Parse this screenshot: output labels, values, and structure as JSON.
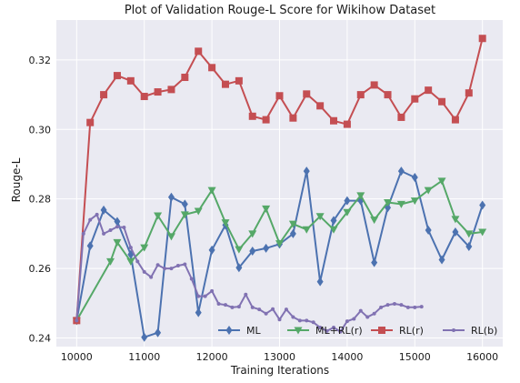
{
  "chart_data": {
    "type": "line",
    "title": "Plot of Validation Rouge-L Score for Wikihow Dataset",
    "xlabel": "Training Iterations",
    "ylabel": "Rouge-L",
    "xlim": [
      9700,
      16300
    ],
    "ylim": [
      0.2375,
      0.3315
    ],
    "xticks": [
      "10000",
      "11000",
      "12000",
      "13000",
      "14000",
      "15000",
      "16000"
    ],
    "yticks": [
      "0.24",
      "0.26",
      "0.28",
      "0.30",
      "0.32"
    ],
    "grid": true,
    "background": "#EAEAF2",
    "legend_position": "bottom-center",
    "series": [
      {
        "name": "ML",
        "color": "#4C72B0",
        "marker": "diamond",
        "x": [
          10000,
          10200,
          10400,
          10600,
          10800,
          11000,
          11200,
          11400,
          11600,
          11800,
          12000,
          12200,
          12400,
          12600,
          12800,
          13000,
          13200,
          13400,
          13600,
          13800,
          14000,
          14200,
          14400,
          14600,
          14800,
          15000,
          15200,
          15400,
          15600,
          15800,
          16000
        ],
        "y": [
          0.245,
          0.2665,
          0.2768,
          0.2735,
          0.264,
          0.2402,
          0.2415,
          0.2805,
          0.2785,
          0.2473,
          0.2653,
          0.2725,
          0.2602,
          0.265,
          0.2658,
          0.267,
          0.27,
          0.288,
          0.2562,
          0.2738,
          0.2795,
          0.2795,
          0.2617,
          0.2775,
          0.288,
          0.2862,
          0.271,
          0.2625,
          0.2705,
          0.2663,
          0.2782
        ]
      },
      {
        "name": "ML+RL(r)",
        "color": "#55A868",
        "marker": "triangle-down",
        "x": [
          10000,
          10500,
          10600,
          10800,
          11000,
          11200,
          11400,
          11600,
          11800,
          12000,
          12200,
          12400,
          12600,
          12800,
          13000,
          13200,
          13400,
          13600,
          13800,
          14000,
          14200,
          14400,
          14600,
          14800,
          15000,
          15200,
          15400,
          15600,
          15800,
          16000
        ],
        "y": [
          0.245,
          0.262,
          0.2675,
          0.262,
          0.266,
          0.2752,
          0.2692,
          0.2755,
          0.2765,
          0.2825,
          0.2732,
          0.2655,
          0.27,
          0.2772,
          0.2672,
          0.2728,
          0.2712,
          0.275,
          0.2712,
          0.2762,
          0.281,
          0.274,
          0.279,
          0.2785,
          0.2795,
          0.2825,
          0.2852,
          0.2742,
          0.27,
          0.2705
        ]
      },
      {
        "name": "RL(r)",
        "color": "#C44E52",
        "marker": "square",
        "x": [
          10000,
          10200,
          10400,
          10600,
          10800,
          11000,
          11200,
          11400,
          11600,
          11800,
          12000,
          12200,
          12400,
          12600,
          12800,
          13000,
          13200,
          13400,
          13600,
          13800,
          14000,
          14200,
          14400,
          14600,
          14800,
          15000,
          15200,
          15400,
          15600,
          15800,
          16000
        ],
        "y": [
          0.245,
          0.302,
          0.31,
          0.3155,
          0.314,
          0.3095,
          0.3108,
          0.3115,
          0.315,
          0.3225,
          0.3178,
          0.313,
          0.314,
          0.3038,
          0.3028,
          0.3097,
          0.3033,
          0.3102,
          0.3068,
          0.3025,
          0.3015,
          0.31,
          0.3128,
          0.31,
          0.3035,
          0.3088,
          0.3113,
          0.308,
          0.3028,
          0.3105,
          0.3262
        ]
      },
      {
        "name": "RL(b)",
        "color": "#8172B2",
        "marker": "dot",
        "x": [
          10000,
          10100,
          10200,
          10300,
          10400,
          10500,
          10600,
          10700,
          10800,
          10900,
          11000,
          11100,
          11200,
          11300,
          11400,
          11500,
          11600,
          11700,
          11800,
          11900,
          12000,
          12100,
          12200,
          12300,
          12400,
          12500,
          12600,
          12700,
          12800,
          12900,
          13000,
          13100,
          13200,
          13300,
          13400,
          13500,
          13600,
          13700,
          13800,
          13900,
          14000,
          14100,
          14200,
          14300,
          14400,
          14500,
          14600,
          14700,
          14800,
          14900,
          15000,
          15100
        ],
        "y": [
          0.245,
          0.27,
          0.274,
          0.2755,
          0.27,
          0.271,
          0.272,
          0.2718,
          0.266,
          0.262,
          0.259,
          0.2575,
          0.261,
          0.26,
          0.26,
          0.2608,
          0.2612,
          0.257,
          0.252,
          0.252,
          0.2535,
          0.2498,
          0.2495,
          0.2488,
          0.249,
          0.2525,
          0.2488,
          0.2482,
          0.247,
          0.2483,
          0.2453,
          0.2482,
          0.246,
          0.245,
          0.245,
          0.2445,
          0.243,
          0.242,
          0.243,
          0.2418,
          0.2448,
          0.2455,
          0.2478,
          0.246,
          0.247,
          0.2488,
          0.2495,
          0.2498,
          0.2495,
          0.2488,
          0.2488,
          0.249
        ]
      }
    ]
  }
}
